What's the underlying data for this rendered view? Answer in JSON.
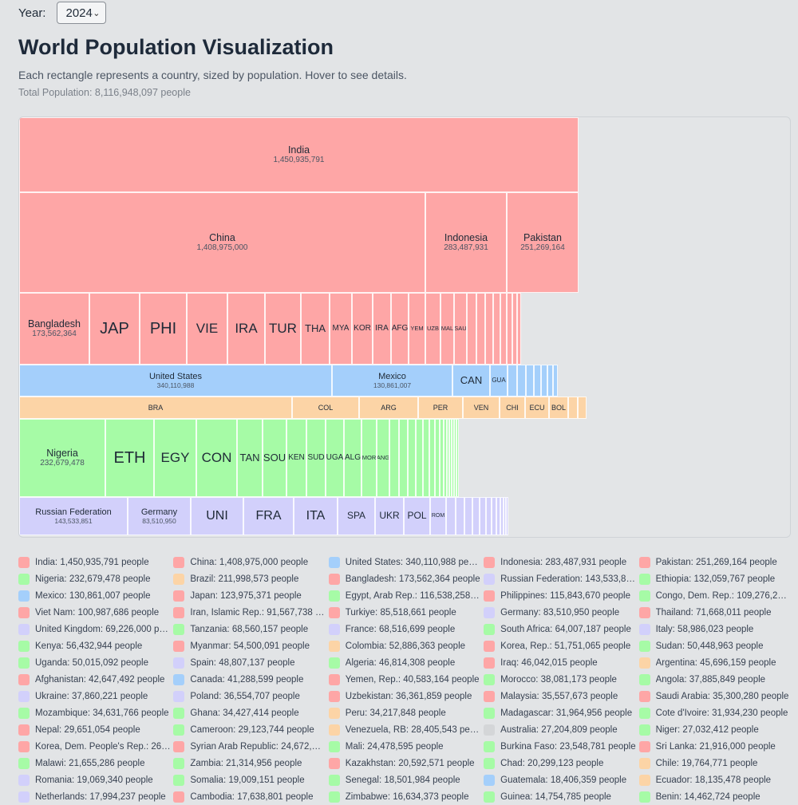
{
  "controls": {
    "year_label": "Year:",
    "year_value": "2024"
  },
  "header": {
    "title": "World Population Visualization",
    "subtitle": "Each rectangle represents a country, sized by population. Hover to see details.",
    "total": "Total Population: 8,116,948,097 people"
  },
  "colors": {
    "Asia": "#fea6a6",
    "Americas-N": "#a4cffb",
    "Americas-S": "#fcd4a6",
    "Africa": "#a6fba6",
    "Europe": "#d2d0fb",
    "Oceania": "#d4d6d8"
  },
  "treemap": {
    "bands": [
      {
        "region": "Asia",
        "cells": [
          {
            "label": "India",
            "value": "1,450,935,791"
          }
        ]
      },
      {
        "region": "Asia",
        "cells": [
          {
            "label": "China",
            "value": "1,408,975,000"
          },
          {
            "label": "Indonesia",
            "value": "283,487,931"
          },
          {
            "label": "Pakistan",
            "value": "251,269,164"
          }
        ]
      },
      {
        "region": "Asia",
        "cells": [
          {
            "label": "Bangladesh",
            "value": "173,562,364"
          },
          {
            "label": "JAP",
            "value": ""
          },
          {
            "label": "PHI",
            "value": ""
          },
          {
            "label": "VIE",
            "value": ""
          },
          {
            "label": "IRA",
            "value": ""
          },
          {
            "label": "TUR",
            "value": ""
          },
          {
            "label": "THA",
            "value": ""
          },
          {
            "label": "MYA",
            "value": ""
          },
          {
            "label": "KOR",
            "value": ""
          },
          {
            "label": "IRA",
            "value": ""
          },
          {
            "label": "AFG",
            "value": ""
          },
          {
            "label": "YEM",
            "value": ""
          },
          {
            "label": "UZB",
            "value": ""
          },
          {
            "label": "MAL",
            "value": ""
          },
          {
            "label": "SAU",
            "value": ""
          }
        ]
      },
      {
        "region": "Americas-N",
        "cells": [
          {
            "label": "United States",
            "value": "340,110,988"
          },
          {
            "label": "Mexico",
            "value": "130,861,007"
          },
          {
            "label": "CAN",
            "value": ""
          },
          {
            "label": "GUA",
            "value": ""
          }
        ]
      },
      {
        "region": "Americas-S",
        "cells": [
          {
            "label": "BRA",
            "value": ""
          },
          {
            "label": "COL",
            "value": ""
          },
          {
            "label": "ARG",
            "value": ""
          },
          {
            "label": "PER",
            "value": ""
          },
          {
            "label": "VEN",
            "value": ""
          },
          {
            "label": "CHI",
            "value": ""
          },
          {
            "label": "ECU",
            "value": ""
          },
          {
            "label": "BOL",
            "value": ""
          }
        ]
      },
      {
        "region": "Africa",
        "cells": [
          {
            "label": "Nigeria",
            "value": "232,679,478"
          },
          {
            "label": "ETH",
            "value": ""
          },
          {
            "label": "EGY",
            "value": ""
          },
          {
            "label": "CON",
            "value": ""
          },
          {
            "label": "TAN",
            "value": ""
          },
          {
            "label": "SOU",
            "value": ""
          },
          {
            "label": "KEN",
            "value": ""
          },
          {
            "label": "SUD",
            "value": ""
          },
          {
            "label": "UGA",
            "value": ""
          },
          {
            "label": "ALG",
            "value": ""
          },
          {
            "label": "MOR",
            "value": ""
          },
          {
            "label": "ANG",
            "value": ""
          }
        ]
      },
      {
        "region": "Europe",
        "cells": [
          {
            "label": "Russian Federation",
            "value": "143,533,851"
          },
          {
            "label": "Germany",
            "value": "83,510,950"
          },
          {
            "label": "UNI",
            "value": ""
          },
          {
            "label": "FRA",
            "value": ""
          },
          {
            "label": "ITA",
            "value": ""
          },
          {
            "label": "SPA",
            "value": ""
          },
          {
            "label": "UKR",
            "value": ""
          },
          {
            "label": "POL",
            "value": ""
          },
          {
            "label": "ROM",
            "value": ""
          }
        ]
      }
    ]
  },
  "legend": [
    {
      "text": "India: 1,450,935,791 people",
      "region": "Asia"
    },
    {
      "text": "China: 1,408,975,000 people",
      "region": "Asia"
    },
    {
      "text": "United States: 340,110,988 people",
      "region": "Americas-N"
    },
    {
      "text": "Indonesia: 283,487,931 people",
      "region": "Asia"
    },
    {
      "text": "Pakistan: 251,269,164 people",
      "region": "Asia"
    },
    {
      "text": "Nigeria: 232,679,478 people",
      "region": "Africa"
    },
    {
      "text": "Brazil: 211,998,573 people",
      "region": "Americas-S"
    },
    {
      "text": "Bangladesh: 173,562,364 people",
      "region": "Asia"
    },
    {
      "text": "Russian Federation: 143,533,851 p...",
      "region": "Europe"
    },
    {
      "text": "Ethiopia: 132,059,767 people",
      "region": "Africa"
    },
    {
      "text": "Mexico: 130,861,007 people",
      "region": "Americas-N"
    },
    {
      "text": "Japan: 123,975,371 people",
      "region": "Asia"
    },
    {
      "text": "Egypt, Arab Rep.: 116,538,258 peo...",
      "region": "Africa"
    },
    {
      "text": "Philippines: 115,843,670 people",
      "region": "Asia"
    },
    {
      "text": "Congo, Dem. Rep.: 109,276,265 pe...",
      "region": "Africa"
    },
    {
      "text": "Viet Nam: 100,987,686 people",
      "region": "Asia"
    },
    {
      "text": "Iran, Islamic Rep.: 91,567,738 peo...",
      "region": "Asia"
    },
    {
      "text": "Turkiye: 85,518,661 people",
      "region": "Asia"
    },
    {
      "text": "Germany: 83,510,950 people",
      "region": "Europe"
    },
    {
      "text": "Thailand: 71,668,011 people",
      "region": "Asia"
    },
    {
      "text": "United Kingdom: 69,226,000 people",
      "region": "Europe"
    },
    {
      "text": "Tanzania: 68,560,157 people",
      "region": "Africa"
    },
    {
      "text": "France: 68,516,699 people",
      "region": "Europe"
    },
    {
      "text": "South Africa: 64,007,187 people",
      "region": "Africa"
    },
    {
      "text": "Italy: 58,986,023 people",
      "region": "Europe"
    },
    {
      "text": "Kenya: 56,432,944 people",
      "region": "Africa"
    },
    {
      "text": "Myanmar: 54,500,091 people",
      "region": "Asia"
    },
    {
      "text": "Colombia: 52,886,363 people",
      "region": "Americas-S"
    },
    {
      "text": "Korea, Rep.: 51,751,065 people",
      "region": "Asia"
    },
    {
      "text": "Sudan: 50,448,963 people",
      "region": "Africa"
    },
    {
      "text": "Uganda: 50,015,092 people",
      "region": "Africa"
    },
    {
      "text": "Spain: 48,807,137 people",
      "region": "Europe"
    },
    {
      "text": "Algeria: 46,814,308 people",
      "region": "Africa"
    },
    {
      "text": "Iraq: 46,042,015 people",
      "region": "Asia"
    },
    {
      "text": "Argentina: 45,696,159 people",
      "region": "Americas-S"
    },
    {
      "text": "Afghanistan: 42,647,492 people",
      "region": "Asia"
    },
    {
      "text": "Canada: 41,288,599 people",
      "region": "Americas-N"
    },
    {
      "text": "Yemen, Rep.: 40,583,164 people",
      "region": "Asia"
    },
    {
      "text": "Morocco: 38,081,173 people",
      "region": "Africa"
    },
    {
      "text": "Angola: 37,885,849 people",
      "region": "Africa"
    },
    {
      "text": "Ukraine: 37,860,221 people",
      "region": "Europe"
    },
    {
      "text": "Poland: 36,554,707 people",
      "region": "Europe"
    },
    {
      "text": "Uzbekistan: 36,361,859 people",
      "region": "Asia"
    },
    {
      "text": "Malaysia: 35,557,673 people",
      "region": "Asia"
    },
    {
      "text": "Saudi Arabia: 35,300,280 people",
      "region": "Asia"
    },
    {
      "text": "Mozambique: 34,631,766 people",
      "region": "Africa"
    },
    {
      "text": "Ghana: 34,427,414 people",
      "region": "Africa"
    },
    {
      "text": "Peru: 34,217,848 people",
      "region": "Americas-S"
    },
    {
      "text": "Madagascar: 31,964,956 people",
      "region": "Africa"
    },
    {
      "text": "Cote d'Ivoire: 31,934,230 people",
      "region": "Africa"
    },
    {
      "text": "Nepal: 29,651,054 people",
      "region": "Asia"
    },
    {
      "text": "Cameroon: 29,123,744 people",
      "region": "Africa"
    },
    {
      "text": "Venezuela, RB: 28,405,543 people",
      "region": "Americas-S"
    },
    {
      "text": "Australia: 27,204,809 people",
      "region": "Oceania"
    },
    {
      "text": "Niger: 27,032,412 people",
      "region": "Africa"
    },
    {
      "text": "Korea, Dem. People's Rep.: 26,498,...",
      "region": "Asia"
    },
    {
      "text": "Syrian Arab Republic: 24,672,760 p...",
      "region": "Asia"
    },
    {
      "text": "Mali: 24,478,595 people",
      "region": "Africa"
    },
    {
      "text": "Burkina Faso: 23,548,781 people",
      "region": "Africa"
    },
    {
      "text": "Sri Lanka: 21,916,000 people",
      "region": "Asia"
    },
    {
      "text": "Malawi: 21,655,286 people",
      "region": "Africa"
    },
    {
      "text": "Zambia: 21,314,956 people",
      "region": "Africa"
    },
    {
      "text": "Kazakhstan: 20,592,571 people",
      "region": "Asia"
    },
    {
      "text": "Chad: 20,299,123 people",
      "region": "Africa"
    },
    {
      "text": "Chile: 19,764,771 people",
      "region": "Americas-S"
    },
    {
      "text": "Romania: 19,069,340 people",
      "region": "Europe"
    },
    {
      "text": "Somalia: 19,009,151 people",
      "region": "Africa"
    },
    {
      "text": "Senegal: 18,501,984 people",
      "region": "Africa"
    },
    {
      "text": "Guatemala: 18,406,359 people",
      "region": "Americas-N"
    },
    {
      "text": "Ecuador: 18,135,478 people",
      "region": "Americas-S"
    },
    {
      "text": "Netherlands: 17,994,237 people",
      "region": "Europe"
    },
    {
      "text": "Cambodia: 17,638,801 people",
      "region": "Asia"
    },
    {
      "text": "Zimbabwe: 16,634,373 people",
      "region": "Africa"
    },
    {
      "text": "Guinea: 14,754,785 people",
      "region": "Africa"
    },
    {
      "text": "Benin: 14,462,724 people",
      "region": "Africa"
    }
  ]
}
